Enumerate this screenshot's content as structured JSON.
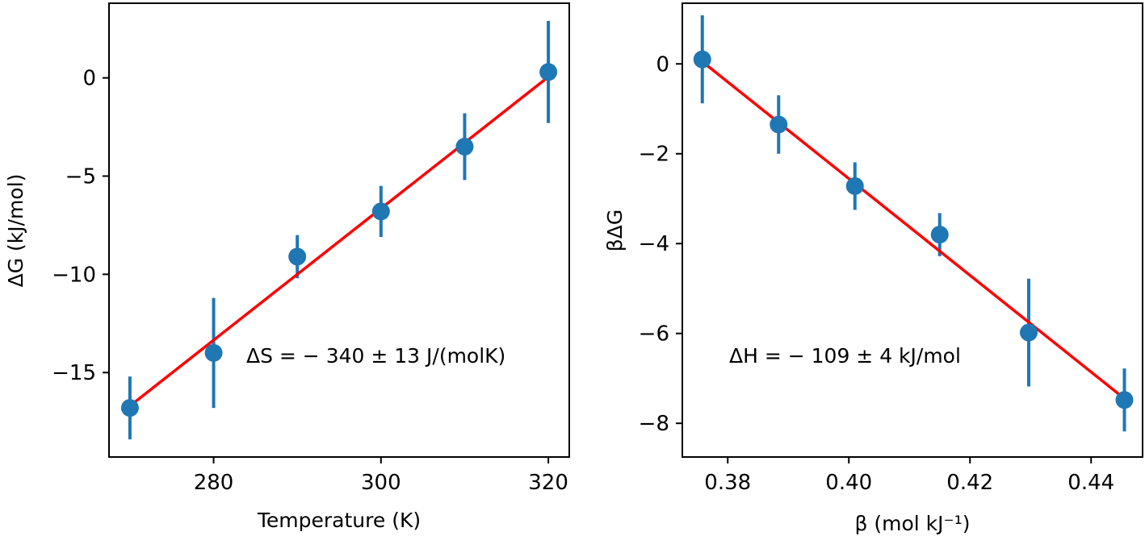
{
  "chart_data": [
    {
      "type": "scatter",
      "xlabel": "Temperature (K)",
      "ylabel": "ΔG (kJ/mol)",
      "xlim": [
        267.5,
        322.5
      ],
      "ylim": [
        -19.3,
        3.8
      ],
      "xticks": [
        280,
        300,
        320
      ],
      "xtick_labels": [
        "280",
        "300",
        "320"
      ],
      "yticks": [
        0,
        -5,
        -10,
        -15
      ],
      "ytick_labels": [
        "0",
        "−5",
        "−10",
        "−15"
      ],
      "annotation": "ΔS = − 340 ± 13 J/(molK)",
      "grid": false,
      "series": [
        {
          "kind": "errorbar",
          "color": "#1f77b4",
          "x": [
            270,
            280,
            290,
            300,
            310,
            320
          ],
          "y": [
            -16.8,
            -14.0,
            -9.1,
            -6.8,
            -3.5,
            0.3
          ],
          "yerr": [
            1.6,
            2.8,
            1.1,
            1.3,
            1.7,
            2.6
          ]
        },
        {
          "kind": "fit-line",
          "color": "#ff0000",
          "x": [
            270,
            320
          ],
          "y": [
            -16.7,
            0.05
          ]
        }
      ]
    },
    {
      "type": "scatter",
      "xlabel": "β (mol kJ⁻¹)",
      "ylabel": "βΔG",
      "xlim": [
        0.3725,
        0.4485
      ],
      "ylim": [
        -8.75,
        1.35
      ],
      "xticks": [
        0.38,
        0.4,
        0.42,
        0.44
      ],
      "xtick_labels": [
        "0.38",
        "0.40",
        "0.42",
        "0.44"
      ],
      "yticks": [
        0,
        -2,
        -4,
        -6,
        -8
      ],
      "ytick_labels": [
        "0",
        "−2",
        "−4",
        "−6",
        "−8"
      ],
      "annotation": "ΔH = − 109 ± 4 kJ/mol",
      "grid": false,
      "series": [
        {
          "kind": "errorbar",
          "color": "#1f77b4",
          "x": [
            0.3758,
            0.3884,
            0.401,
            0.415,
            0.4297,
            0.4455
          ],
          "y": [
            0.1,
            -1.35,
            -2.72,
            -3.8,
            -5.98,
            -7.48
          ],
          "yerr": [
            0.98,
            0.65,
            0.53,
            0.48,
            1.2,
            0.7
          ]
        },
        {
          "kind": "fit-line",
          "color": "#ff0000",
          "x": [
            0.3758,
            0.4455
          ],
          "y": [
            0.05,
            -7.45
          ]
        }
      ]
    }
  ]
}
